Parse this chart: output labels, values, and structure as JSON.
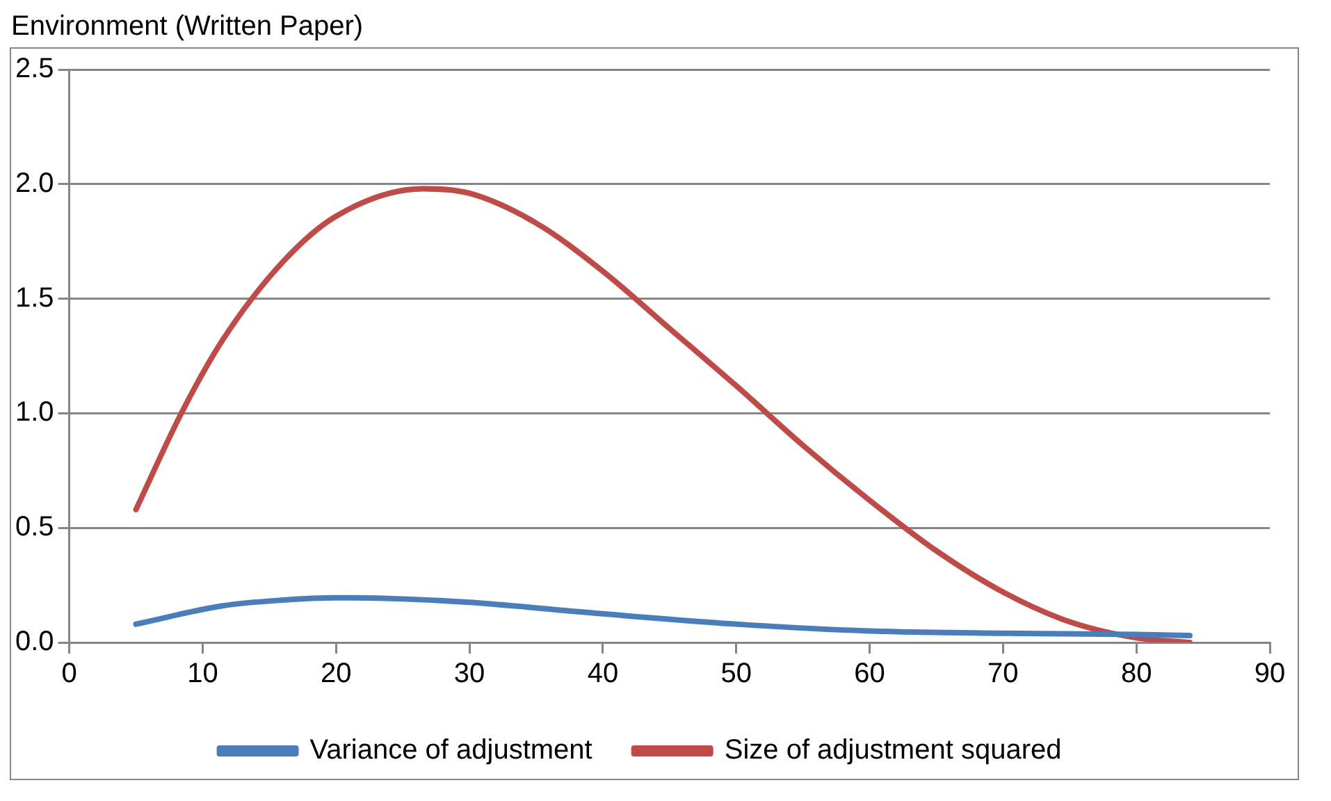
{
  "chart_data": {
    "type": "line",
    "title": "Environment (Written Paper)",
    "xlim": [
      0,
      90
    ],
    "xticks": [
      0,
      10,
      20,
      30,
      40,
      50,
      60,
      70,
      80,
      90
    ],
    "ylim": [
      0,
      2.5
    ],
    "yticks": [
      {
        "value": 0,
        "label": "0.0"
      },
      {
        "value": 0.5,
        "label": "0.5"
      },
      {
        "value": 1,
        "label": "1.0"
      },
      {
        "value": 1.5,
        "label": "1.5"
      },
      {
        "value": 2,
        "label": "2.0"
      },
      {
        "value": 2.5,
        "label": "2.5"
      }
    ],
    "grid": "y",
    "legend": "bottom",
    "marker": "none",
    "line_style": "solid",
    "series": [
      {
        "name": "Variance of adjustment",
        "color": "#4a7ebb",
        "x": [
          5,
          11.5,
          16,
          20,
          25,
          30,
          40,
          50,
          60,
          70,
          80,
          84
        ],
        "values": [
          0.08,
          0.16,
          0.185,
          0.195,
          0.19,
          0.175,
          0.125,
          0.08,
          0.05,
          0.04,
          0.035,
          0.03
        ]
      },
      {
        "name": "Size of adjustment squared",
        "color": "#be4b48",
        "x": [
          5,
          8.4,
          11.5,
          16,
          20,
          26.5,
          30,
          35,
          40,
          45,
          50,
          55,
          60,
          65,
          70,
          75,
          80,
          84
        ],
        "values": [
          0.58,
          1.0,
          1.32,
          1.66,
          1.86,
          1.98,
          1.96,
          1.83,
          1.62,
          1.37,
          1.12,
          0.86,
          0.62,
          0.4,
          0.22,
          0.09,
          0.02,
          0.0
        ]
      }
    ]
  }
}
